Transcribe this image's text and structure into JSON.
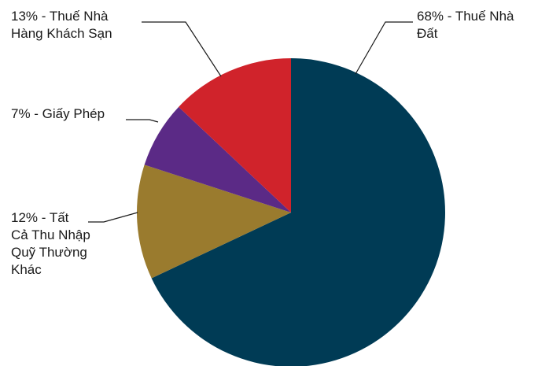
{
  "chart_data": {
    "type": "pie",
    "title": "",
    "slices": [
      {
        "label": "68% - Thuế Nhà Đất",
        "value": 68,
        "color": "#003b55"
      },
      {
        "label": "12% - Tất Cả Thu Nhập Quỹ Thường Khác",
        "value": 12,
        "color": "#9a7b2e"
      },
      {
        "label": "7% - Giấy Phép",
        "value": 7,
        "color": "#5b2a86"
      },
      {
        "label": "13% - Thuế Nhà Hàng Khách Sạn",
        "value": 13,
        "color": "#d0232b"
      }
    ],
    "legend": "none"
  },
  "labels": {
    "nha_dat": {
      "line1": "68% - Thuế Nhà",
      "line2": "Đất"
    },
    "khac": {
      "line1": "12% - Tất",
      "line2": "Cả Thu Nhập",
      "line3": "Quỹ Thường",
      "line4": "Khác"
    },
    "giay_phep": {
      "line1": "7% - Giấy Phép"
    },
    "nha_hang": {
      "line1": "13% - Thuế Nhà",
      "line2": "Hàng Khách Sạn"
    }
  }
}
